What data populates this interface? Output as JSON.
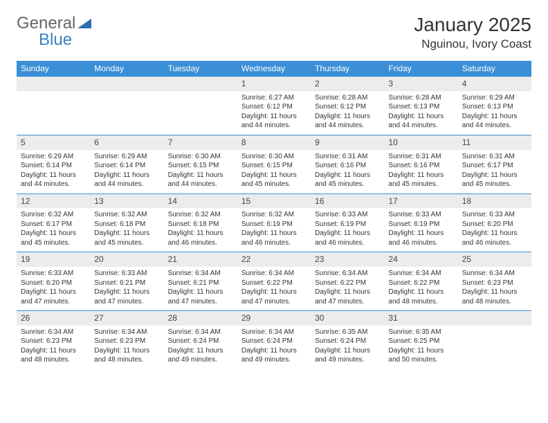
{
  "brand": {
    "general": "General",
    "blue": "Blue"
  },
  "title": "January 2025",
  "location": "Nguinou, Ivory Coast",
  "colors": {
    "header_bg": "#3b8fd6",
    "header_fg": "#ffffff",
    "daynum_bg": "#ececec",
    "week_border": "#3b8fd6",
    "text": "#333333",
    "brand_grey": "#666666",
    "brand_blue": "#3a7fc2",
    "page_bg": "#ffffff"
  },
  "weekdays": [
    "Sunday",
    "Monday",
    "Tuesday",
    "Wednesday",
    "Thursday",
    "Friday",
    "Saturday"
  ],
  "weeks": [
    [
      {
        "day": "",
        "lines": []
      },
      {
        "day": "",
        "lines": []
      },
      {
        "day": "",
        "lines": []
      },
      {
        "day": "1",
        "lines": [
          "Sunrise: 6:27 AM",
          "Sunset: 6:12 PM",
          "Daylight: 11 hours",
          "and 44 minutes."
        ]
      },
      {
        "day": "2",
        "lines": [
          "Sunrise: 6:28 AM",
          "Sunset: 6:12 PM",
          "Daylight: 11 hours",
          "and 44 minutes."
        ]
      },
      {
        "day": "3",
        "lines": [
          "Sunrise: 6:28 AM",
          "Sunset: 6:13 PM",
          "Daylight: 11 hours",
          "and 44 minutes."
        ]
      },
      {
        "day": "4",
        "lines": [
          "Sunrise: 6:29 AM",
          "Sunset: 6:13 PM",
          "Daylight: 11 hours",
          "and 44 minutes."
        ]
      }
    ],
    [
      {
        "day": "5",
        "lines": [
          "Sunrise: 6:29 AM",
          "Sunset: 6:14 PM",
          "Daylight: 11 hours",
          "and 44 minutes."
        ]
      },
      {
        "day": "6",
        "lines": [
          "Sunrise: 6:29 AM",
          "Sunset: 6:14 PM",
          "Daylight: 11 hours",
          "and 44 minutes."
        ]
      },
      {
        "day": "7",
        "lines": [
          "Sunrise: 6:30 AM",
          "Sunset: 6:15 PM",
          "Daylight: 11 hours",
          "and 44 minutes."
        ]
      },
      {
        "day": "8",
        "lines": [
          "Sunrise: 6:30 AM",
          "Sunset: 6:15 PM",
          "Daylight: 11 hours",
          "and 45 minutes."
        ]
      },
      {
        "day": "9",
        "lines": [
          "Sunrise: 6:31 AM",
          "Sunset: 6:16 PM",
          "Daylight: 11 hours",
          "and 45 minutes."
        ]
      },
      {
        "day": "10",
        "lines": [
          "Sunrise: 6:31 AM",
          "Sunset: 6:16 PM",
          "Daylight: 11 hours",
          "and 45 minutes."
        ]
      },
      {
        "day": "11",
        "lines": [
          "Sunrise: 6:31 AM",
          "Sunset: 6:17 PM",
          "Daylight: 11 hours",
          "and 45 minutes."
        ]
      }
    ],
    [
      {
        "day": "12",
        "lines": [
          "Sunrise: 6:32 AM",
          "Sunset: 6:17 PM",
          "Daylight: 11 hours",
          "and 45 minutes."
        ]
      },
      {
        "day": "13",
        "lines": [
          "Sunrise: 6:32 AM",
          "Sunset: 6:18 PM",
          "Daylight: 11 hours",
          "and 45 minutes."
        ]
      },
      {
        "day": "14",
        "lines": [
          "Sunrise: 6:32 AM",
          "Sunset: 6:18 PM",
          "Daylight: 11 hours",
          "and 46 minutes."
        ]
      },
      {
        "day": "15",
        "lines": [
          "Sunrise: 6:32 AM",
          "Sunset: 6:19 PM",
          "Daylight: 11 hours",
          "and 46 minutes."
        ]
      },
      {
        "day": "16",
        "lines": [
          "Sunrise: 6:33 AM",
          "Sunset: 6:19 PM",
          "Daylight: 11 hours",
          "and 46 minutes."
        ]
      },
      {
        "day": "17",
        "lines": [
          "Sunrise: 6:33 AM",
          "Sunset: 6:19 PM",
          "Daylight: 11 hours",
          "and 46 minutes."
        ]
      },
      {
        "day": "18",
        "lines": [
          "Sunrise: 6:33 AM",
          "Sunset: 6:20 PM",
          "Daylight: 11 hours",
          "and 46 minutes."
        ]
      }
    ],
    [
      {
        "day": "19",
        "lines": [
          "Sunrise: 6:33 AM",
          "Sunset: 6:20 PM",
          "Daylight: 11 hours",
          "and 47 minutes."
        ]
      },
      {
        "day": "20",
        "lines": [
          "Sunrise: 6:33 AM",
          "Sunset: 6:21 PM",
          "Daylight: 11 hours",
          "and 47 minutes."
        ]
      },
      {
        "day": "21",
        "lines": [
          "Sunrise: 6:34 AM",
          "Sunset: 6:21 PM",
          "Daylight: 11 hours",
          "and 47 minutes."
        ]
      },
      {
        "day": "22",
        "lines": [
          "Sunrise: 6:34 AM",
          "Sunset: 6:22 PM",
          "Daylight: 11 hours",
          "and 47 minutes."
        ]
      },
      {
        "day": "23",
        "lines": [
          "Sunrise: 6:34 AM",
          "Sunset: 6:22 PM",
          "Daylight: 11 hours",
          "and 47 minutes."
        ]
      },
      {
        "day": "24",
        "lines": [
          "Sunrise: 6:34 AM",
          "Sunset: 6:22 PM",
          "Daylight: 11 hours",
          "and 48 minutes."
        ]
      },
      {
        "day": "25",
        "lines": [
          "Sunrise: 6:34 AM",
          "Sunset: 6:23 PM",
          "Daylight: 11 hours",
          "and 48 minutes."
        ]
      }
    ],
    [
      {
        "day": "26",
        "lines": [
          "Sunrise: 6:34 AM",
          "Sunset: 6:23 PM",
          "Daylight: 11 hours",
          "and 48 minutes."
        ]
      },
      {
        "day": "27",
        "lines": [
          "Sunrise: 6:34 AM",
          "Sunset: 6:23 PM",
          "Daylight: 11 hours",
          "and 48 minutes."
        ]
      },
      {
        "day": "28",
        "lines": [
          "Sunrise: 6:34 AM",
          "Sunset: 6:24 PM",
          "Daylight: 11 hours",
          "and 49 minutes."
        ]
      },
      {
        "day": "29",
        "lines": [
          "Sunrise: 6:34 AM",
          "Sunset: 6:24 PM",
          "Daylight: 11 hours",
          "and 49 minutes."
        ]
      },
      {
        "day": "30",
        "lines": [
          "Sunrise: 6:35 AM",
          "Sunset: 6:24 PM",
          "Daylight: 11 hours",
          "and 49 minutes."
        ]
      },
      {
        "day": "31",
        "lines": [
          "Sunrise: 6:35 AM",
          "Sunset: 6:25 PM",
          "Daylight: 11 hours",
          "and 50 minutes."
        ]
      },
      {
        "day": "",
        "lines": []
      }
    ]
  ]
}
